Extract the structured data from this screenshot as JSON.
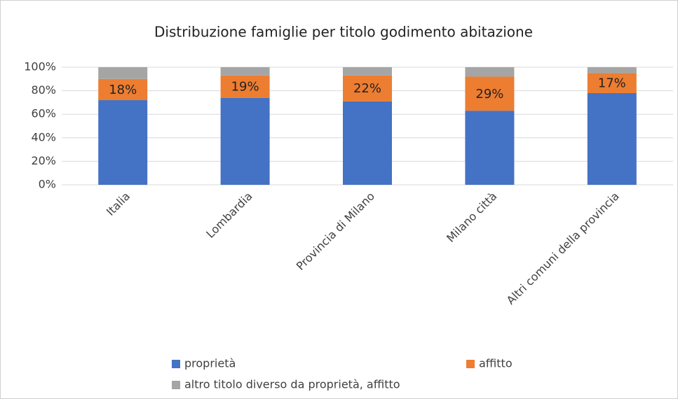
{
  "chart_data": {
    "type": "stacked_bar",
    "title": "Distribuzione famiglie per titolo godimento abitazione",
    "categories": [
      "Italia",
      "Lombardia",
      "Provincia di Milano",
      "Milano città",
      "Altri comuni della provincia"
    ],
    "series": [
      {
        "name": "proprietà",
        "color": "#4472c4",
        "values": [
          72,
          74,
          71,
          63,
          78
        ]
      },
      {
        "name": "affitto",
        "color": "#ed7d31",
        "values": [
          18,
          19,
          22,
          29,
          17
        ],
        "value_labels": [
          "18%",
          "19%",
          "22%",
          "29%",
          "17%"
        ]
      },
      {
        "name": "altro titolo diverso da proprietà, affitto",
        "color": "#a5a5a5",
        "values": [
          10,
          7,
          7,
          8,
          5
        ]
      }
    ],
    "ylim": [
      0,
      100
    ],
    "yticks": [
      {
        "value": 0,
        "label": "0%"
      },
      {
        "value": 20,
        "label": "20%"
      },
      {
        "value": 40,
        "label": "40%"
      },
      {
        "value": 60,
        "label": "60%"
      },
      {
        "value": 80,
        "label": "80%"
      },
      {
        "value": 100,
        "label": "100%"
      }
    ],
    "grid": true
  }
}
